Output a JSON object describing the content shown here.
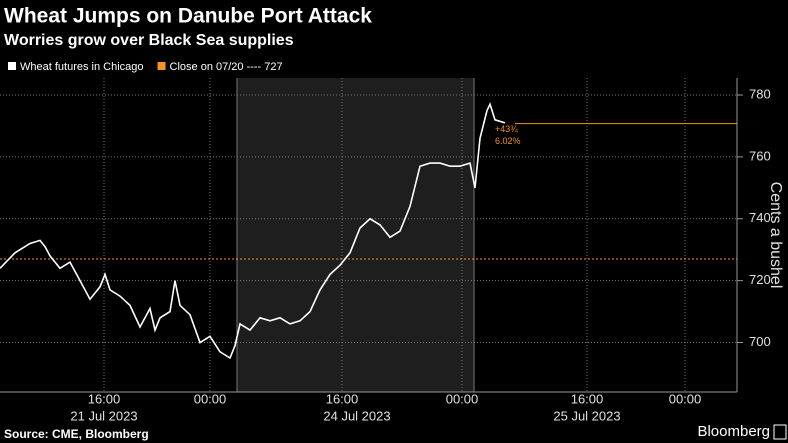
{
  "chart_data": {
    "type": "line",
    "title": "Wheat Jumps on Danube Port Attack",
    "subtitle": "Worries grow over Black Sea supplies",
    "y_label": "Cents a bushel",
    "source": "Source: CME, Bloomberg",
    "brand": "Bloomberg",
    "x": [
      0,
      1.5,
      3,
      4,
      4.5,
      5,
      6,
      7,
      8,
      9,
      10,
      10.5,
      11,
      12,
      13,
      14,
      15,
      15.5,
      16,
      17,
      17.5,
      18,
      19,
      20,
      21,
      22,
      23,
      23.5,
      24,
      25,
      26,
      27,
      28,
      29,
      30,
      31,
      32,
      33,
      34,
      35,
      36,
      37,
      38,
      39,
      40,
      41,
      42,
      43,
      44,
      45,
      46,
      47,
      47.5,
      48,
      48.7,
      49,
      49.5,
      50.5
    ],
    "series": [
      {
        "name": "Wheat futures in Chicago",
        "color": "#ffffff",
        "values": [
          724,
          729,
          732,
          733,
          731,
          728,
          724,
          726,
          720,
          714,
          718,
          722,
          717,
          715,
          712,
          705,
          711,
          704,
          708,
          710,
          720,
          712,
          709,
          700,
          702,
          697,
          695,
          699,
          706,
          704,
          708,
          707,
          708,
          706,
          707,
          710,
          717,
          722,
          725,
          729,
          737,
          740,
          738,
          734,
          736,
          744,
          757,
          758,
          758,
          757,
          757,
          758,
          750,
          766,
          775,
          777,
          772,
          771
        ]
      }
    ],
    "reference_lines": [
      {
        "name": "Close on 07/20 ---- 727",
        "value": 727,
        "color": "#f7931e",
        "style": "dotted"
      },
      {
        "value": 770.75,
        "start": 51.5,
        "color": "#f7931e",
        "style": "solid"
      }
    ],
    "annotations": [
      "+43¾",
      "6.02%"
    ],
    "shaded_region": [
      23.7,
      47.4
    ],
    "xlim": [
      0,
      73.7
    ],
    "xticks": [
      {
        "value": 10.4,
        "label": "16:00"
      },
      {
        "value": 21,
        "label": "00:00"
      },
      {
        "value": 34.2,
        "label": "16:00"
      },
      {
        "value": 46.2,
        "label": "00:00"
      },
      {
        "value": 58.7,
        "label": "16:00"
      },
      {
        "value": 68.5,
        "label": "00:00"
      }
    ],
    "xdates": [
      {
        "value": 10.4,
        "label": "21 Jul 2023"
      },
      {
        "value": 35.7,
        "label": "24 Jul 2023"
      },
      {
        "value": 58.7,
        "label": "25 Jul 2023"
      }
    ],
    "ylim": [
      684,
      785.5
    ],
    "yticks": [
      700,
      720,
      740,
      760,
      780
    ],
    "grid": true
  }
}
